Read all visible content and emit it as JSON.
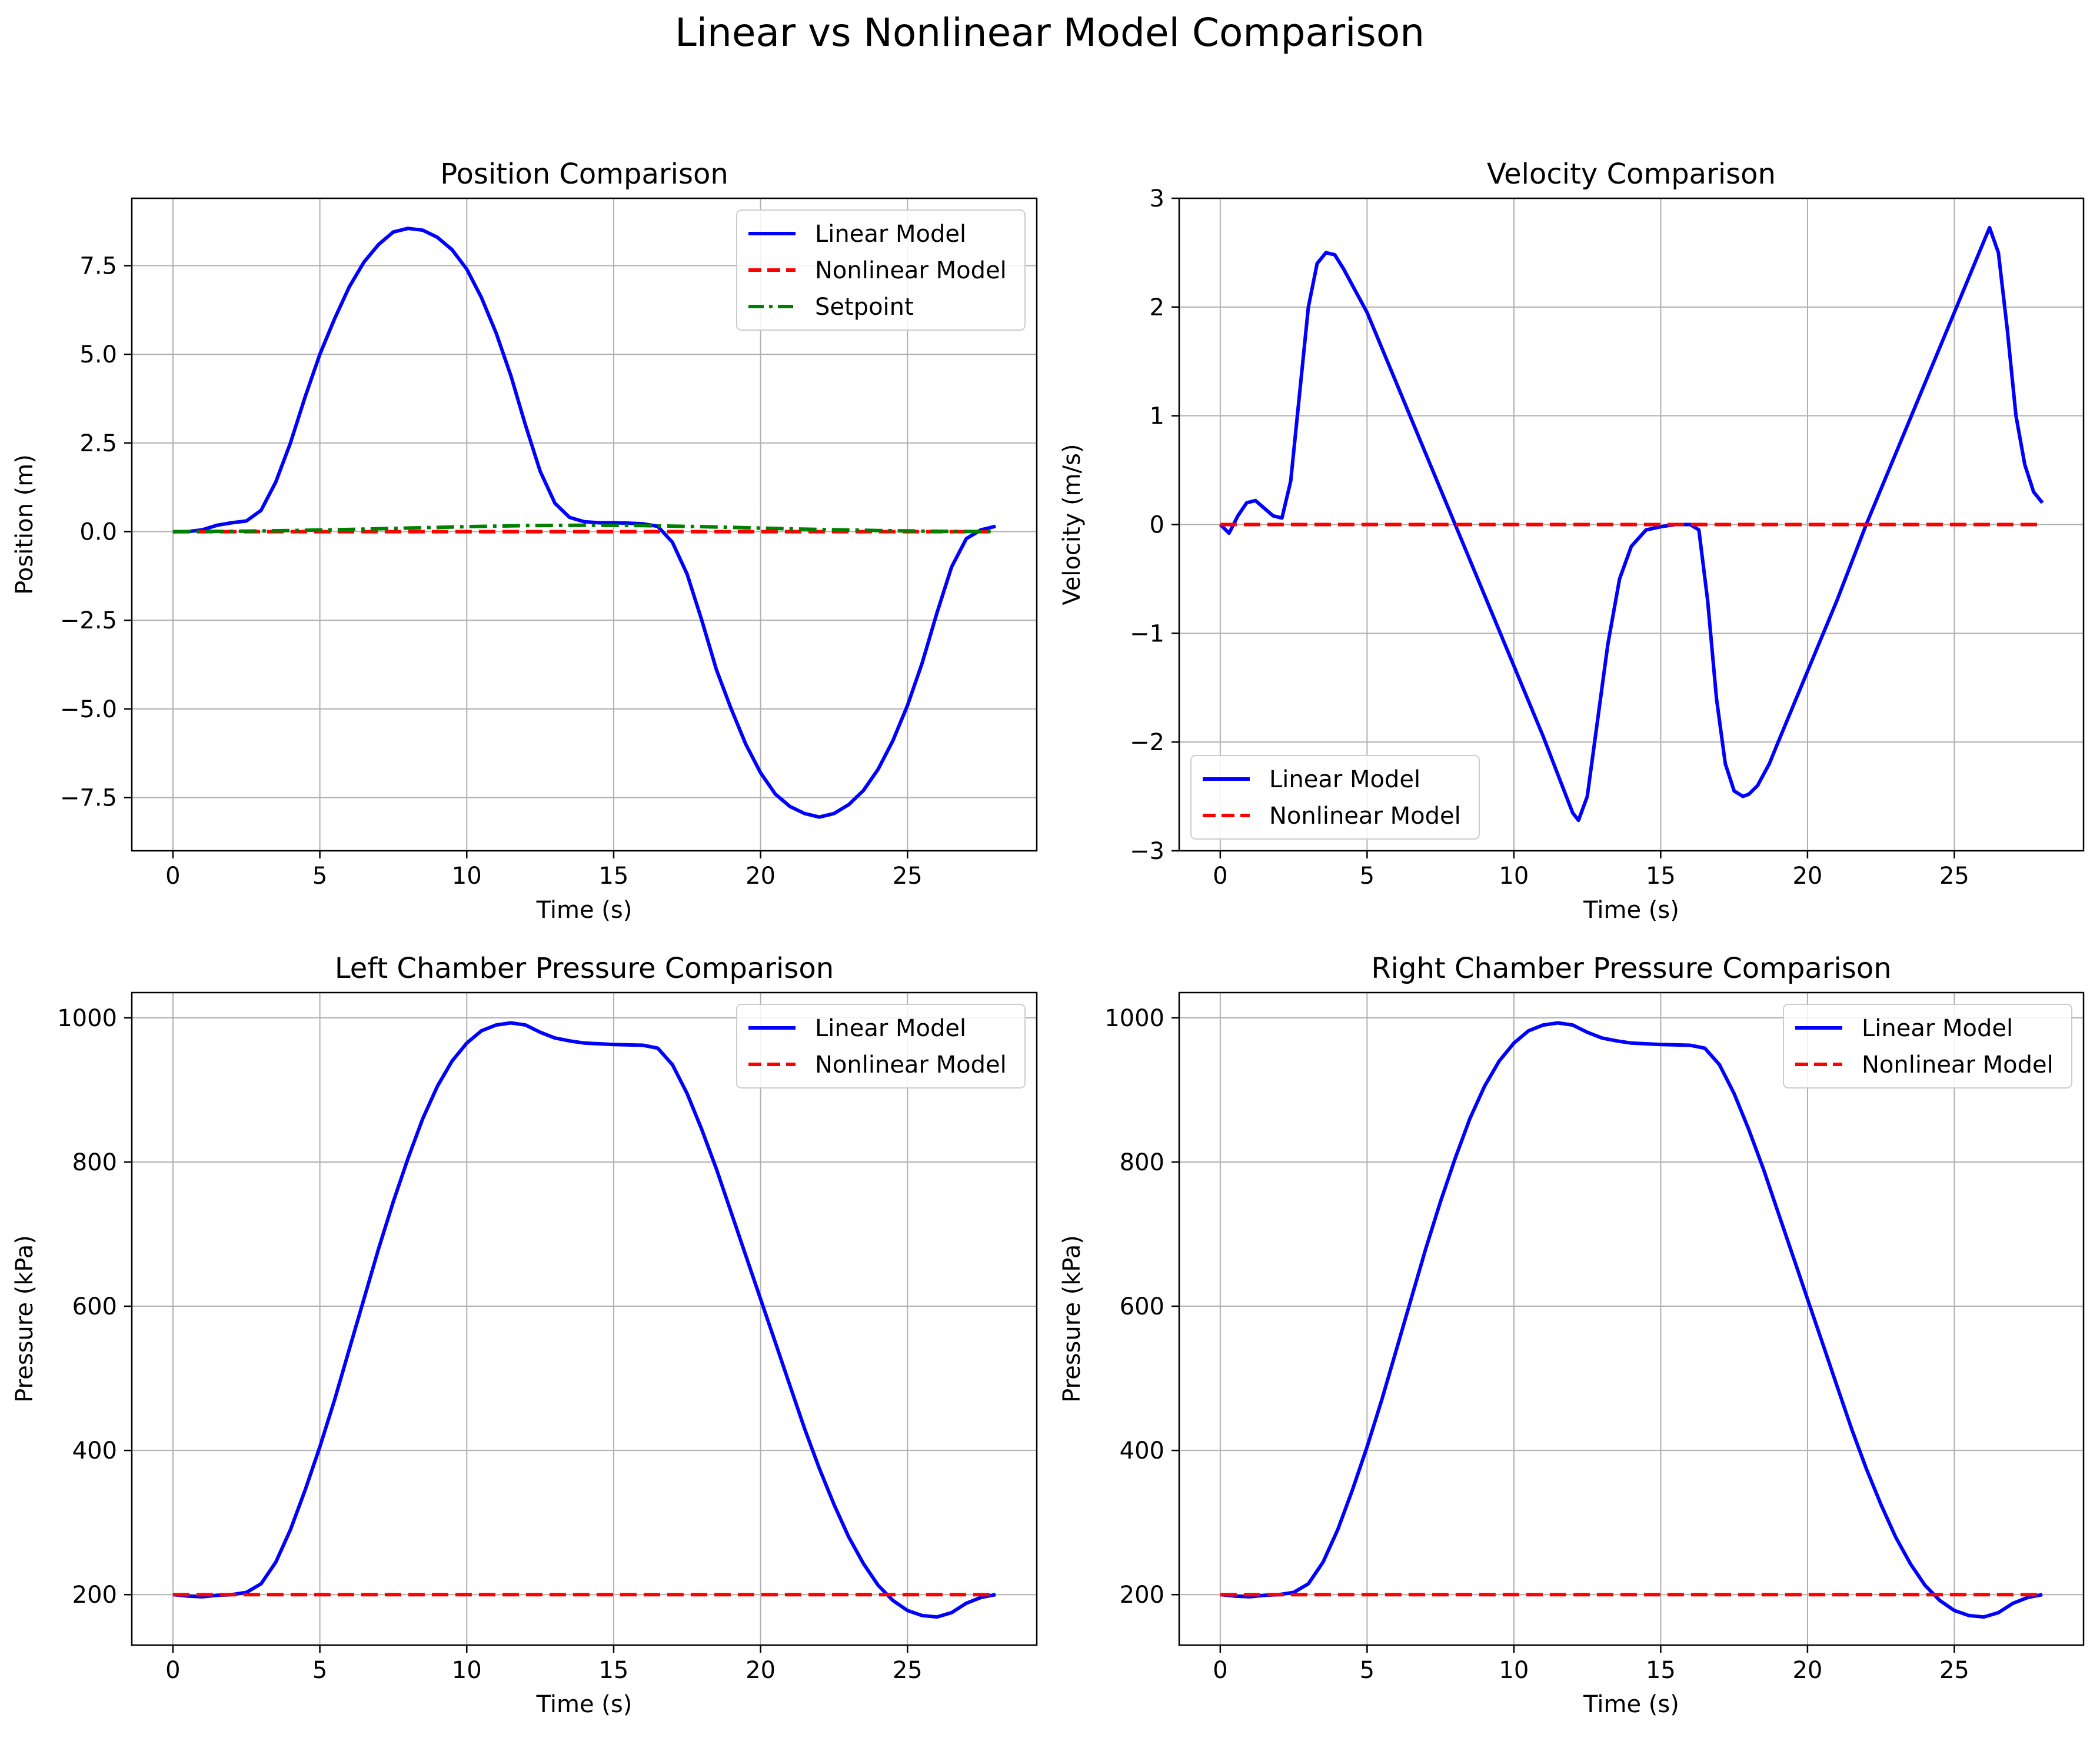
{
  "figure": {
    "suptitle": "Linear vs Nonlinear Model Comparison"
  },
  "colors": {
    "linear": "#0000ff",
    "nonlinear": "#ff0000",
    "setpoint": "#008000",
    "grid": "#b0b0b0",
    "axes": "#000000"
  },
  "chart_data": [
    {
      "id": "position",
      "type": "line",
      "title": "Position Comparison",
      "xlabel": "Time (s)",
      "ylabel": "Position (m)",
      "xlim": [
        -1.4,
        29.4
      ],
      "ylim": [
        -9.0,
        9.4
      ],
      "xticks": [
        0,
        5,
        10,
        15,
        20,
        25
      ],
      "xtick_labels": [
        "0",
        "5",
        "10",
        "15",
        "20",
        "25"
      ],
      "yticks": [
        -7.5,
        -5.0,
        -2.5,
        0.0,
        2.5,
        5.0,
        7.5
      ],
      "ytick_labels": [
        "−7.5",
        "−5.0",
        "−2.5",
        "0.0",
        "2.5",
        "5.0",
        "7.5"
      ],
      "grid": true,
      "legend_loc": "upper right",
      "series": [
        {
          "name": "Linear Model",
          "style": "solid",
          "color": "linear",
          "x": [
            0,
            0.5,
            1.0,
            1.5,
            2.0,
            2.5,
            3.0,
            3.5,
            4.0,
            4.5,
            5.0,
            5.5,
            6.0,
            6.5,
            7.0,
            7.5,
            8.0,
            8.5,
            9.0,
            9.5,
            10.0,
            10.5,
            11.0,
            11.5,
            12.0,
            12.5,
            13.0,
            13.5,
            14.0,
            14.5,
            15.0,
            15.5,
            16.0,
            16.5,
            17.0,
            17.5,
            18.0,
            18.5,
            19.0,
            19.5,
            20.0,
            20.5,
            21.0,
            21.5,
            22.0,
            22.5,
            23.0,
            23.5,
            24.0,
            24.5,
            25.0,
            25.5,
            26.0,
            26.5,
            27.0,
            27.5,
            28.0
          ],
          "y": [
            0.0,
            0.0,
            0.05,
            0.18,
            0.25,
            0.3,
            0.6,
            1.4,
            2.5,
            3.8,
            5.0,
            6.0,
            6.9,
            7.6,
            8.1,
            8.45,
            8.55,
            8.5,
            8.3,
            7.95,
            7.4,
            6.6,
            5.6,
            4.4,
            3.0,
            1.7,
            0.8,
            0.4,
            0.28,
            0.25,
            0.25,
            0.24,
            0.22,
            0.15,
            -0.3,
            -1.2,
            -2.5,
            -3.9,
            -5.0,
            -6.0,
            -6.8,
            -7.4,
            -7.75,
            -7.95,
            -8.05,
            -7.95,
            -7.7,
            -7.3,
            -6.7,
            -5.9,
            -4.9,
            -3.7,
            -2.3,
            -1.0,
            -0.2,
            0.05,
            0.15
          ]
        },
        {
          "name": "Nonlinear Model",
          "style": "dashed",
          "color": "nonlinear",
          "x": [
            0,
            28
          ],
          "y": [
            0.0,
            0.0
          ]
        },
        {
          "name": "Setpoint",
          "style": "dashdot",
          "color": "setpoint",
          "x": [
            0,
            2,
            4,
            6,
            8,
            10,
            12,
            14,
            16,
            18,
            20,
            22,
            24,
            26,
            28
          ],
          "y": [
            0.0,
            0.01,
            0.03,
            0.06,
            0.1,
            0.14,
            0.17,
            0.18,
            0.17,
            0.14,
            0.1,
            0.06,
            0.03,
            0.01,
            0.0
          ]
        }
      ]
    },
    {
      "id": "velocity",
      "type": "line",
      "title": "Velocity Comparison",
      "xlabel": "Time (s)",
      "ylabel": "Velocity (m/s)",
      "xlim": [
        -1.4,
        29.4
      ],
      "ylim": [
        -3.0,
        3.0
      ],
      "xticks": [
        0,
        5,
        10,
        15,
        20,
        25
      ],
      "xtick_labels": [
        "0",
        "5",
        "10",
        "15",
        "20",
        "25"
      ],
      "yticks": [
        -3,
        -2,
        -1,
        0,
        1,
        2,
        3
      ],
      "ytick_labels": [
        "−3",
        "−2",
        "−1",
        "0",
        "1",
        "2",
        "3"
      ],
      "grid": true,
      "legend_loc": "lower left",
      "series": [
        {
          "name": "Linear Model",
          "style": "solid",
          "color": "linear",
          "x": [
            0,
            0.3,
            0.6,
            0.9,
            1.2,
            1.5,
            1.8,
            2.1,
            2.4,
            2.7,
            3.0,
            3.3,
            3.6,
            3.9,
            4.2,
            4.6,
            5.0,
            6.0,
            7.0,
            8.0,
            9.0,
            10.0,
            11.0,
            11.5,
            12.0,
            12.2,
            12.5,
            12.8,
            13.2,
            13.6,
            14.0,
            14.5,
            15.0,
            15.5,
            16.0,
            16.3,
            16.6,
            16.9,
            17.2,
            17.5,
            17.8,
            18.0,
            18.3,
            18.7,
            19.0,
            20.0,
            21.0,
            22.0,
            23.0,
            24.0,
            25.0,
            26.0,
            26.2,
            26.5,
            26.8,
            27.1,
            27.4,
            27.7,
            28.0
          ],
          "y": [
            0.0,
            -0.08,
            0.08,
            0.2,
            0.22,
            0.15,
            0.08,
            0.06,
            0.4,
            1.2,
            2.0,
            2.4,
            2.5,
            2.48,
            2.35,
            2.15,
            1.95,
            1.3,
            0.65,
            0.0,
            -0.65,
            -1.3,
            -1.95,
            -2.3,
            -2.65,
            -2.72,
            -2.5,
            -1.9,
            -1.1,
            -0.5,
            -0.2,
            -0.05,
            -0.02,
            0.0,
            0.0,
            -0.05,
            -0.7,
            -1.6,
            -2.2,
            -2.45,
            -2.5,
            -2.48,
            -2.4,
            -2.2,
            -2.0,
            -1.35,
            -0.7,
            0.0,
            0.65,
            1.3,
            1.95,
            2.6,
            2.73,
            2.5,
            1.8,
            1.0,
            0.55,
            0.3,
            0.2
          ]
        },
        {
          "name": "Nonlinear Model",
          "style": "dashed",
          "color": "nonlinear",
          "x": [
            0,
            28
          ],
          "y": [
            0.0,
            0.0
          ]
        }
      ]
    },
    {
      "id": "left-pressure",
      "type": "line",
      "title": "Left Chamber Pressure Comparison",
      "xlabel": "Time (s)",
      "ylabel": "Pressure (kPa)",
      "xlim": [
        -1.4,
        29.4
      ],
      "ylim": [
        130,
        1035
      ],
      "xticks": [
        0,
        5,
        10,
        15,
        20,
        25
      ],
      "xtick_labels": [
        "0",
        "5",
        "10",
        "15",
        "20",
        "25"
      ],
      "yticks": [
        200,
        400,
        600,
        800,
        1000
      ],
      "ytick_labels": [
        "200",
        "400",
        "600",
        "800",
        "1000"
      ],
      "grid": true,
      "legend_loc": "upper right",
      "series": [
        {
          "name": "Linear Model",
          "style": "solid",
          "color": "linear",
          "x": [
            0,
            0.5,
            1.0,
            1.5,
            2.0,
            2.5,
            3.0,
            3.5,
            4.0,
            4.5,
            5.0,
            5.5,
            6.0,
            6.5,
            7.0,
            7.5,
            8.0,
            8.5,
            9.0,
            9.5,
            10.0,
            10.5,
            11.0,
            11.5,
            12.0,
            12.5,
            13.0,
            13.5,
            14.0,
            15.0,
            16.0,
            16.5,
            17.0,
            17.5,
            18.0,
            18.5,
            19.0,
            19.5,
            20.0,
            20.5,
            21.0,
            21.5,
            22.0,
            22.5,
            23.0,
            23.5,
            24.0,
            24.5,
            25.0,
            25.5,
            26.0,
            26.5,
            27.0,
            27.5,
            28.0
          ],
          "y": [
            200,
            198,
            197,
            199,
            200,
            203,
            215,
            245,
            290,
            345,
            405,
            470,
            540,
            610,
            680,
            745,
            805,
            860,
            905,
            940,
            965,
            982,
            990,
            993,
            990,
            980,
            972,
            968,
            965,
            963,
            962,
            958,
            935,
            895,
            845,
            790,
            730,
            670,
            610,
            550,
            490,
            430,
            375,
            325,
            280,
            243,
            213,
            192,
            178,
            171,
            169,
            175,
            188,
            196,
            200
          ]
        },
        {
          "name": "Nonlinear Model",
          "style": "dashed",
          "color": "nonlinear",
          "x": [
            0,
            28
          ],
          "y": [
            200,
            200
          ]
        }
      ]
    },
    {
      "id": "right-pressure",
      "type": "line",
      "title": "Right Chamber Pressure Comparison",
      "xlabel": "Time (s)",
      "ylabel": "Pressure (kPa)",
      "xlim": [
        -1.4,
        29.4
      ],
      "ylim": [
        130,
        1035
      ],
      "xticks": [
        0,
        5,
        10,
        15,
        20,
        25
      ],
      "xtick_labels": [
        "0",
        "5",
        "10",
        "15",
        "20",
        "25"
      ],
      "yticks": [
        200,
        400,
        600,
        800,
        1000
      ],
      "ytick_labels": [
        "200",
        "400",
        "600",
        "800",
        "1000"
      ],
      "grid": true,
      "legend_loc": "upper right",
      "series": [
        {
          "name": "Linear Model",
          "style": "solid",
          "color": "linear",
          "x": [
            0,
            0.5,
            1.0,
            1.5,
            2.0,
            2.5,
            3.0,
            3.5,
            4.0,
            4.5,
            5.0,
            5.5,
            6.0,
            6.5,
            7.0,
            7.5,
            8.0,
            8.5,
            9.0,
            9.5,
            10.0,
            10.5,
            11.0,
            11.5,
            12.0,
            12.5,
            13.0,
            13.5,
            14.0,
            15.0,
            16.0,
            16.5,
            17.0,
            17.5,
            18.0,
            18.5,
            19.0,
            19.5,
            20.0,
            20.5,
            21.0,
            21.5,
            22.0,
            22.5,
            23.0,
            23.5,
            24.0,
            24.5,
            25.0,
            25.5,
            26.0,
            26.5,
            27.0,
            27.5,
            28.0
          ],
          "y": [
            200,
            198,
            197,
            199,
            200,
            203,
            215,
            245,
            290,
            345,
            405,
            470,
            540,
            610,
            680,
            745,
            805,
            860,
            905,
            940,
            965,
            982,
            990,
            993,
            990,
            980,
            972,
            968,
            965,
            963,
            962,
            958,
            935,
            895,
            845,
            790,
            730,
            670,
            610,
            550,
            490,
            430,
            375,
            325,
            280,
            243,
            213,
            192,
            178,
            171,
            169,
            175,
            188,
            196,
            200
          ]
        },
        {
          "name": "Nonlinear Model",
          "style": "dashed",
          "color": "nonlinear",
          "x": [
            0,
            28
          ],
          "y": [
            200,
            200
          ]
        }
      ]
    }
  ]
}
